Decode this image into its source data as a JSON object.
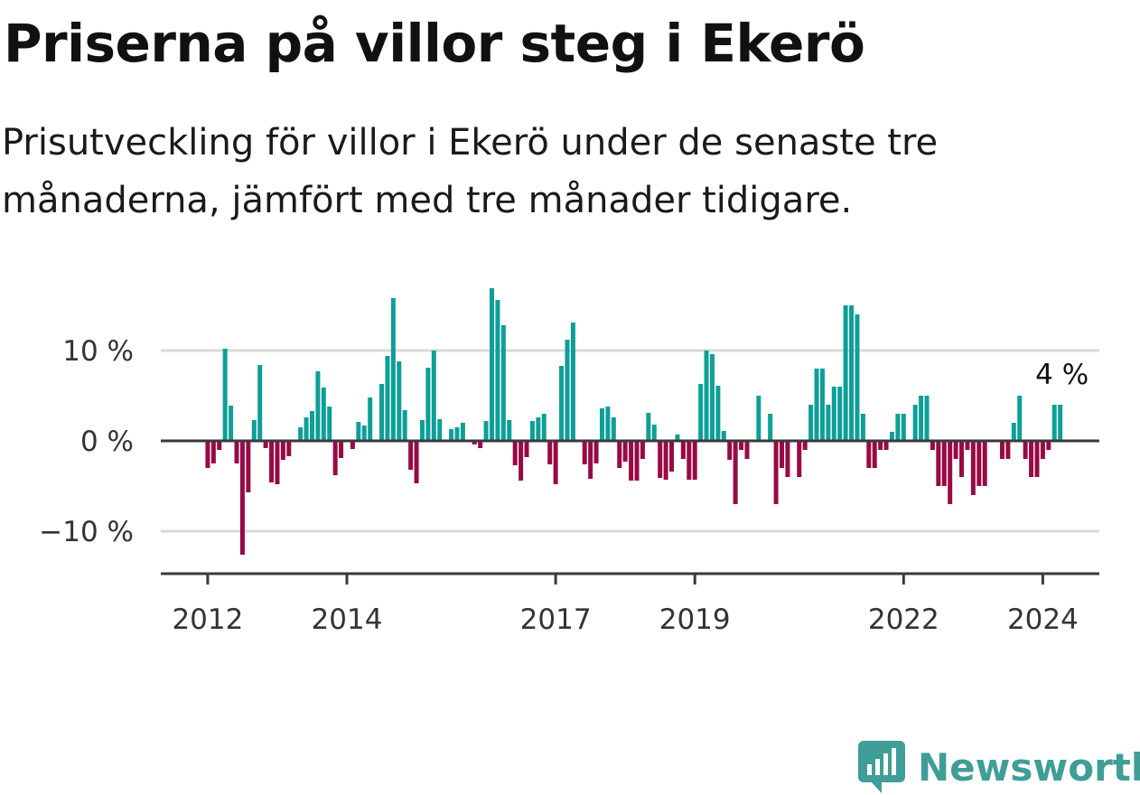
{
  "title": "Priserna på villor steg i Ekerö",
  "subtitle": "Prisutveckling för villor i Ekerö under de senaste tre månaderna, jämfört med tre månader tidigare.",
  "brand": {
    "name": "Newsworthy"
  },
  "colors": {
    "positive": "#0e9f97",
    "negative": "#980a45",
    "grid": "#d9d9d9",
    "axis": "#3a3a3a"
  },
  "chart_data": {
    "type": "bar",
    "title": "Priserna på villor steg i Ekerö",
    "ylabel": "",
    "xlabel": "",
    "unit": "%",
    "ylim": [
      -14,
      17
    ],
    "grid": true,
    "yticks": [
      {
        "value": 10,
        "label": "10 %"
      },
      {
        "value": 0,
        "label": "0 %"
      },
      {
        "value": -10,
        "label": "−10 %"
      }
    ],
    "xticks": [
      {
        "label": "2012",
        "x": "2012-01"
      },
      {
        "label": "2014",
        "x": "2014-01"
      },
      {
        "label": "2017",
        "x": "2017-01"
      },
      {
        "label": "2019",
        "x": "2019-01"
      },
      {
        "label": "2022",
        "x": "2022-01"
      },
      {
        "label": "2024",
        "x": "2024-01"
      }
    ],
    "annotation": {
      "label": "4 %",
      "x": "2024-04",
      "value": 4
    },
    "start_month": "2011-12",
    "values": [
      0,
      -3,
      -2.5,
      -1,
      10.2,
      3.9,
      -2.5,
      -12.6,
      -5.7,
      2.3,
      8.4,
      -0.8,
      -4.6,
      -4.8,
      -2.1,
      -1.7,
      0,
      1.5,
      2.6,
      3.3,
      7.7,
      5.9,
      3.8,
      -3.8,
      -1.9,
      0,
      -0.9,
      2.1,
      1.7,
      4.8,
      0,
      6.3,
      9.4,
      15.8,
      8.8,
      3.4,
      -3.2,
      -4.7,
      2.3,
      8.1,
      10,
      2.4,
      0,
      1.3,
      1.5,
      2,
      0,
      -0.4,
      -0.8,
      2.2,
      16.9,
      15.6,
      12.8,
      2.3,
      -2.7,
      -4.4,
      -1.8,
      2.2,
      2.6,
      3,
      -2.6,
      -4.8,
      8.3,
      11.2,
      13.1,
      0,
      -2.6,
      -4.2,
      -2.5,
      3.6,
      3.8,
      2.6,
      -3,
      -2.3,
      -4.4,
      -4.4,
      -2,
      3.1,
      1.8,
      -4.1,
      -4.3,
      -3.4,
      0.7,
      -2,
      -4.3,
      -4.3,
      6.3,
      10,
      9.6,
      6.1,
      1.1,
      -2.1,
      -7,
      -1,
      -2,
      0,
      5,
      0,
      3,
      -7,
      -3,
      -4,
      0,
      -4,
      -1,
      4,
      8,
      8,
      4,
      6,
      6,
      15,
      15,
      14,
      3,
      -3,
      -3,
      -1,
      -1,
      1,
      3,
      3,
      0,
      4,
      5,
      5,
      -1,
      -5,
      -5,
      -7,
      -2,
      -4,
      -1,
      -6,
      -5,
      -5,
      0,
      0,
      -2,
      -2,
      2,
      5,
      -2,
      -4,
      -4,
      -2,
      -1,
      4,
      4
    ]
  }
}
